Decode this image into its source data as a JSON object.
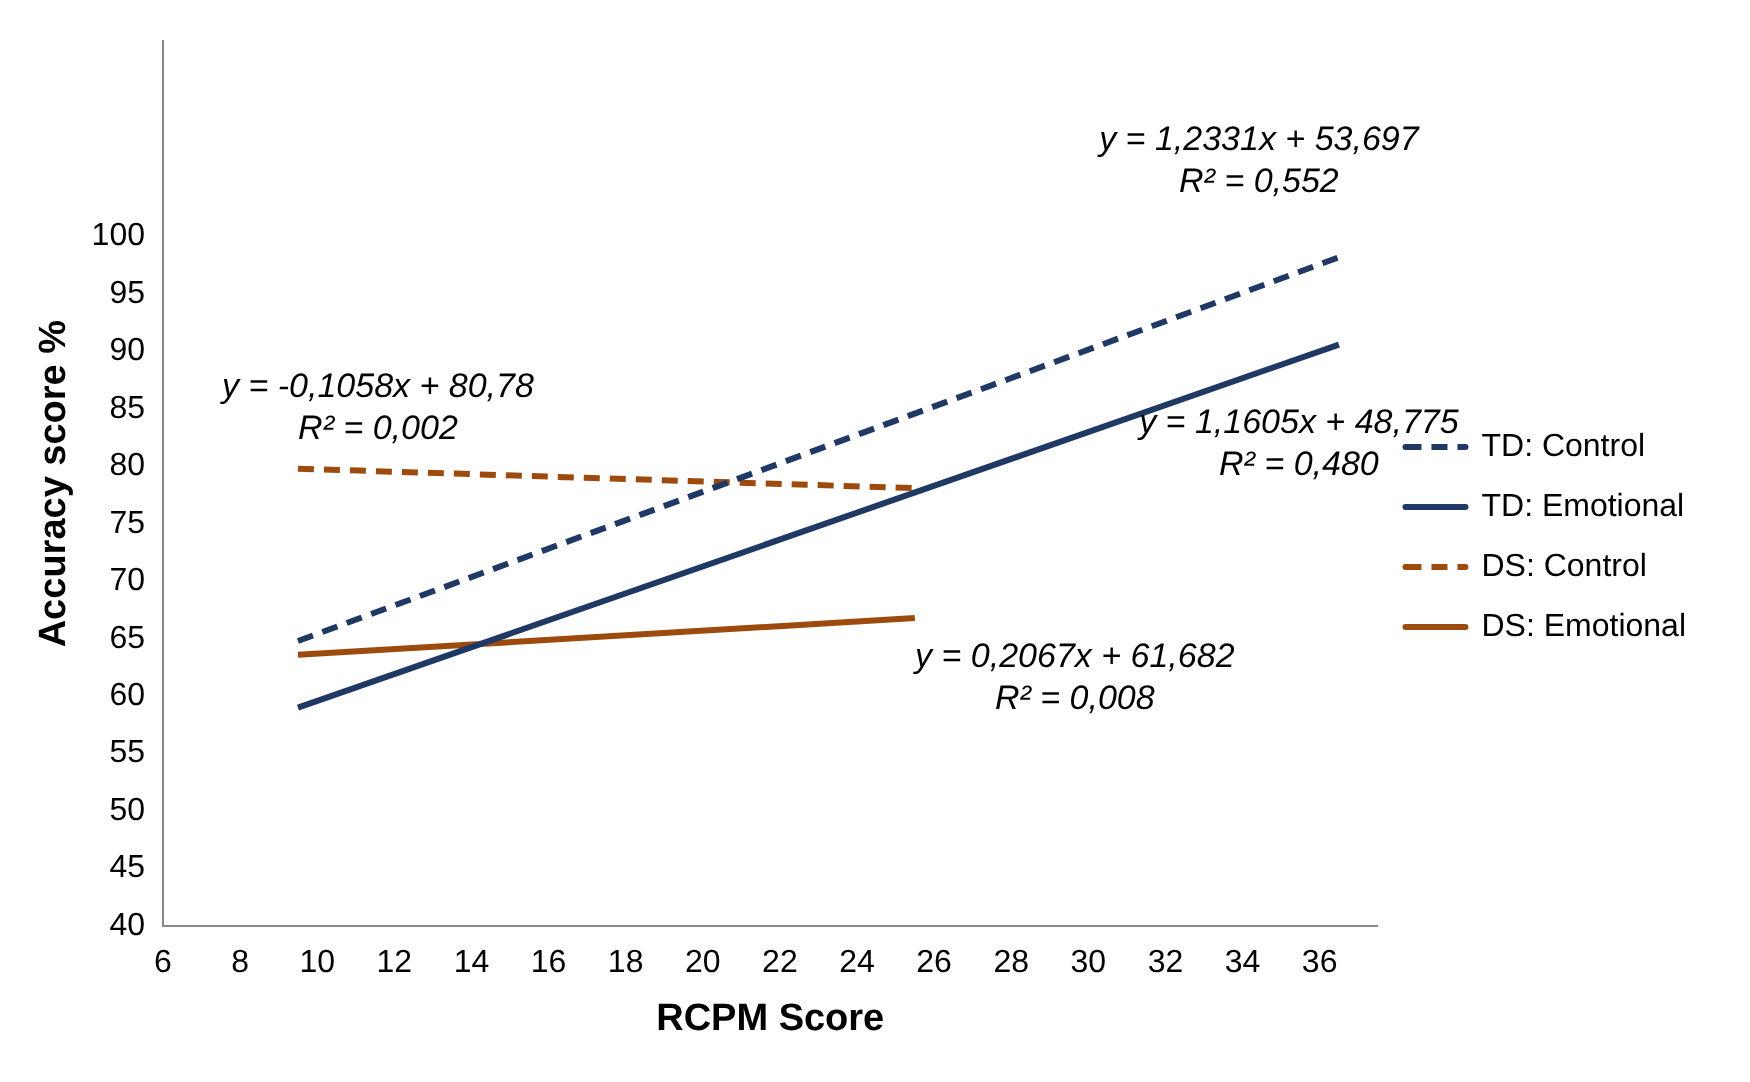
{
  "chart_data": {
    "type": "line",
    "xlabel": "RCPM Score",
    "ylabel": "Accuracy score %",
    "xlim": [
      6,
      37.5
    ],
    "xticks": [
      6,
      8,
      10,
      12,
      14,
      16,
      18,
      20,
      22,
      24,
      26,
      28,
      30,
      32,
      34,
      36
    ],
    "ylim": [
      40,
      117
    ],
    "yticks": [
      40,
      45,
      50,
      55,
      60,
      65,
      70,
      75,
      80,
      85,
      90,
      95,
      100
    ],
    "grid": false,
    "legend": "right",
    "marker": "none",
    "series": [
      {
        "name": "TD: Control",
        "color": "#1f3864",
        "line_style": "dashed",
        "x": [
          9.5,
          36.5
        ],
        "values": [
          64.8,
          98.2
        ]
      },
      {
        "name": "TD: Emotional",
        "color": "#1f3864",
        "line_style": "solid",
        "x": [
          9.5,
          36.5
        ],
        "values": [
          59,
          90.6
        ]
      },
      {
        "name": "DS: Control",
        "color": "#9c4a0e",
        "line_style": "dashed",
        "x": [
          9.5,
          25.5
        ],
        "values": [
          79.8,
          78.1
        ]
      },
      {
        "name": "DS: Emotional",
        "color": "#9c4a0e",
        "line_style": "solid",
        "x": [
          9.5,
          25.5
        ],
        "values": [
          63.6,
          66.8
        ]
      }
    ],
    "annotations": [
      "y = 1,2331x + 53,697\nR² = 0,552",
      "y = 1,1605x + 48,775\nR² = 0,480",
      "y = -0,1058x + 80,78\nR² = 0,002",
      "y = 0,2067x + 61,682\nR² = 0,008"
    ]
  }
}
